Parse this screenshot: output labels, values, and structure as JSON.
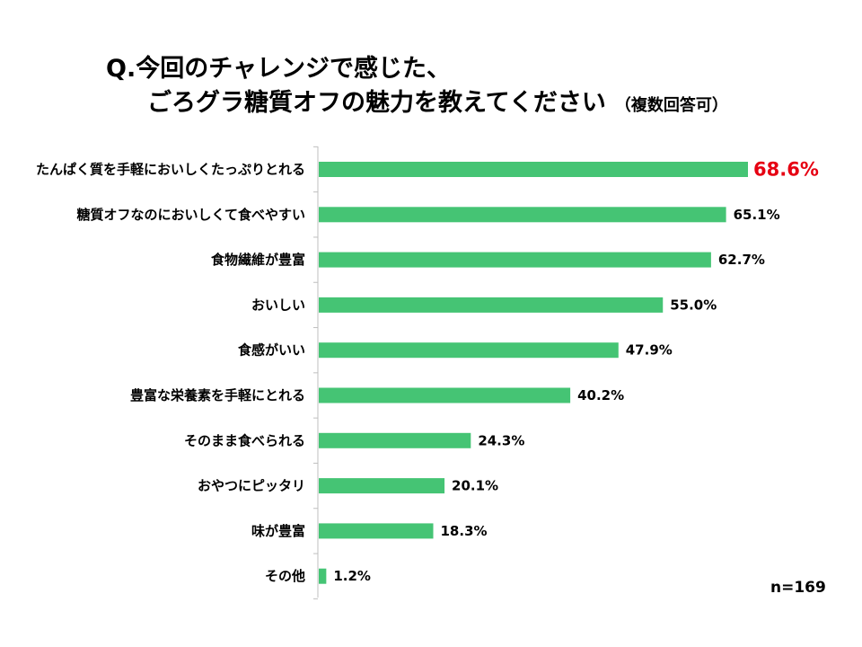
{
  "title": {
    "line1": "Q.今回のチャレンジで感じた、",
    "line2": "ごろグラ糖質オフの魅力を教えてください",
    "note": "（複数回答可）"
  },
  "sample_size": "n=169",
  "colors": {
    "bar": "#45c474",
    "highlight": "#e60012",
    "axis": "#bfbfbf"
  },
  "chart_data": {
    "type": "bar",
    "orientation": "horizontal",
    "title": "Q.今回のチャレンジで感じた、ごろグラ糖質オフの魅力を教えてください（複数回答可）",
    "categories": [
      "たんぱく質を手軽においしくたっぷりとれる",
      "糖質オフなのにおいしくて食べやすい",
      "食物繊維が豊富",
      "おいしい",
      "食感がいい",
      "豊富な栄養素を手軽にとれる",
      "そのまま食べられる",
      "おやつにピッタリ",
      "味が豊富",
      "その他"
    ],
    "values": [
      68.6,
      65.1,
      62.7,
      55.0,
      47.9,
      40.2,
      24.3,
      20.1,
      18.3,
      1.2
    ],
    "value_labels": [
      "68.6%",
      "65.1%",
      "62.7%",
      "55.0%",
      "47.9%",
      "40.2%",
      "24.3%",
      "20.1%",
      "18.3%",
      "1.2%"
    ],
    "highlight_index": 0,
    "xlim": [
      0,
      100
    ],
    "grid": false,
    "legend": "none"
  }
}
